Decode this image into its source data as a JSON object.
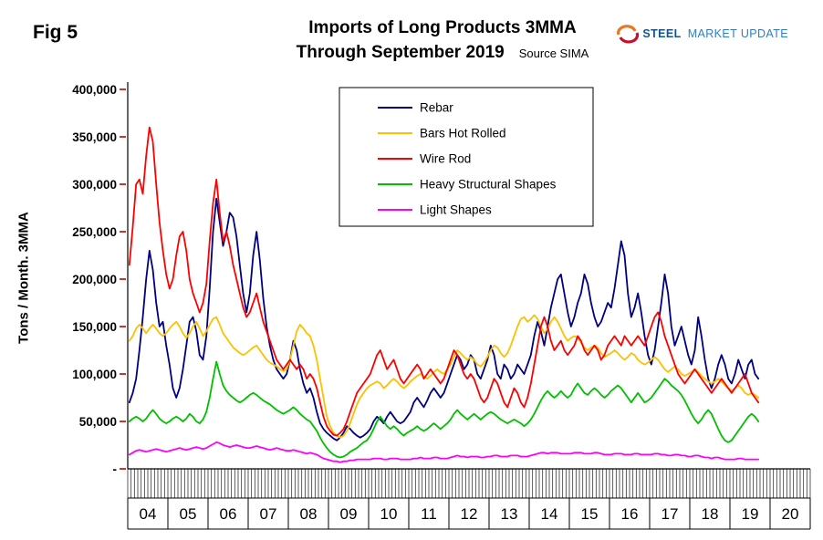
{
  "figure_label": "Fig 5",
  "header": {
    "title_line1": "Imports of Long Products 3MMA",
    "title_line2": "Through September 2019",
    "source": "Source SIMA"
  },
  "logo": {
    "steel": "STEEL",
    "market_update": "MARKET UPDATE"
  },
  "y_axis_title": "Tons / Month. 3MMA",
  "chart_data": {
    "type": "line",
    "title": "Imports of Long Products 3MMA Through September 2019",
    "subtitle": "Source SIMA",
    "xlabel": "",
    "ylabel": "Tons / Month. 3MMA",
    "ylim": [
      0,
      400000
    ],
    "grid": false,
    "legend_position": "top-center-inside",
    "y_ticks": [
      "400,000",
      "350,000",
      "300,000",
      "250,000",
      "200,000",
      "150,000",
      "100,000",
      "50,000",
      "-"
    ],
    "x_year_labels": [
      "04",
      "05",
      "06",
      "07",
      "08",
      "09",
      "10",
      "11",
      "12",
      "13",
      "14",
      "15",
      "16",
      "17",
      "18",
      "19",
      "20"
    ],
    "x_start": "2004-01",
    "x_end": "2019-09",
    "x_frequency": "monthly",
    "series": [
      {
        "name": "Rebar",
        "color": "#000080",
        "values": [
          70000,
          80000,
          95000,
          125000,
          160000,
          200000,
          230000,
          210000,
          175000,
          150000,
          155000,
          130000,
          110000,
          85000,
          75000,
          85000,
          105000,
          130000,
          155000,
          160000,
          145000,
          120000,
          115000,
          140000,
          190000,
          250000,
          285000,
          260000,
          235000,
          250000,
          270000,
          265000,
          245000,
          215000,
          185000,
          165000,
          185000,
          225000,
          250000,
          220000,
          180000,
          150000,
          130000,
          115000,
          105000,
          100000,
          95000,
          100000,
          115000,
          135000,
          125000,
          105000,
          90000,
          80000,
          85000,
          75000,
          60000,
          48000,
          42000,
          38000,
          35000,
          32000,
          30000,
          33000,
          38000,
          45000,
          42000,
          38000,
          35000,
          33000,
          35000,
          38000,
          42000,
          50000,
          55000,
          52000,
          48000,
          55000,
          60000,
          55000,
          50000,
          48000,
          50000,
          55000,
          60000,
          70000,
          75000,
          70000,
          65000,
          72000,
          80000,
          85000,
          80000,
          75000,
          80000,
          90000,
          100000,
          110000,
          120000,
          115000,
          105000,
          110000,
          120000,
          115000,
          100000,
          95000,
          105000,
          115000,
          130000,
          120000,
          100000,
          95000,
          110000,
          105000,
          95000,
          100000,
          110000,
          105000,
          100000,
          110000,
          120000,
          140000,
          155000,
          145000,
          130000,
          150000,
          170000,
          185000,
          200000,
          205000,
          185000,
          165000,
          150000,
          160000,
          175000,
          185000,
          205000,
          195000,
          175000,
          160000,
          150000,
          155000,
          165000,
          175000,
          170000,
          190000,
          215000,
          240000,
          225000,
          185000,
          160000,
          170000,
          185000,
          165000,
          140000,
          120000,
          110000,
          125000,
          150000,
          175000,
          205000,
          185000,
          150000,
          130000,
          140000,
          150000,
          135000,
          120000,
          110000,
          125000,
          160000,
          140000,
          115000,
          95000,
          85000,
          95000,
          110000,
          120000,
          110000,
          95000,
          90000,
          100000,
          115000,
          105000,
          95000,
          110000,
          115000,
          100000,
          95000
        ]
      },
      {
        "name": "Bars Hot Rolled",
        "color": "#FFC000",
        "values": [
          135000,
          140000,
          148000,
          152000,
          148000,
          143000,
          148000,
          152000,
          148000,
          143000,
          140000,
          143000,
          148000,
          152000,
          155000,
          150000,
          143000,
          138000,
          143000,
          150000,
          155000,
          148000,
          140000,
          145000,
          152000,
          158000,
          160000,
          152000,
          143000,
          138000,
          133000,
          128000,
          125000,
          122000,
          120000,
          122000,
          125000,
          128000,
          130000,
          125000,
          120000,
          115000,
          112000,
          110000,
          108000,
          105000,
          103000,
          105000,
          115000,
          130000,
          145000,
          152000,
          148000,
          143000,
          140000,
          130000,
          115000,
          95000,
          75000,
          55000,
          45000,
          38000,
          35000,
          33000,
          35000,
          40000,
          48000,
          58000,
          68000,
          75000,
          80000,
          85000,
          88000,
          90000,
          92000,
          90000,
          85000,
          88000,
          92000,
          95000,
          92000,
          88000,
          85000,
          88000,
          92000,
          95000,
          98000,
          100000,
          98000,
          95000,
          98000,
          102000,
          105000,
          102000,
          100000,
          105000,
          110000,
          118000,
          125000,
          122000,
          118000,
          115000,
          118000,
          115000,
          110000,
          108000,
          112000,
          118000,
          125000,
          130000,
          128000,
          122000,
          118000,
          122000,
          130000,
          140000,
          150000,
          158000,
          160000,
          155000,
          158000,
          162000,
          158000,
          150000,
          143000,
          148000,
          155000,
          160000,
          155000,
          148000,
          140000,
          135000,
          138000,
          140000,
          138000,
          133000,
          128000,
          125000,
          128000,
          130000,
          128000,
          122000,
          118000,
          120000,
          122000,
          125000,
          122000,
          118000,
          115000,
          118000,
          122000,
          120000,
          115000,
          112000,
          110000,
          112000,
          115000,
          118000,
          115000,
          110000,
          105000,
          102000,
          105000,
          108000,
          105000,
          100000,
          98000,
          100000,
          102000,
          105000,
          102000,
          98000,
          95000,
          92000,
          90000,
          92000,
          95000,
          92000,
          88000,
          85000,
          82000,
          85000,
          88000,
          85000,
          80000,
          78000,
          80000,
          78000,
          75000
        ]
      },
      {
        "name": "Wire Rod",
        "color": "#FF0000",
        "values": [
          215000,
          255000,
          300000,
          305000,
          290000,
          330000,
          360000,
          345000,
          300000,
          260000,
          230000,
          205000,
          190000,
          200000,
          225000,
          245000,
          250000,
          230000,
          200000,
          185000,
          175000,
          165000,
          175000,
          195000,
          240000,
          280000,
          305000,
          270000,
          240000,
          250000,
          235000,
          215000,
          200000,
          185000,
          170000,
          160000,
          165000,
          175000,
          185000,
          170000,
          155000,
          145000,
          135000,
          125000,
          115000,
          110000,
          105000,
          110000,
          115000,
          110000,
          105000,
          110000,
          105000,
          95000,
          100000,
          95000,
          85000,
          70000,
          55000,
          45000,
          40000,
          36000,
          35000,
          38000,
          42000,
          50000,
          60000,
          70000,
          80000,
          85000,
          90000,
          95000,
          100000,
          110000,
          120000,
          125000,
          115000,
          105000,
          110000,
          115000,
          105000,
          95000,
          90000,
          95000,
          100000,
          105000,
          110000,
          105000,
          95000,
          100000,
          105000,
          100000,
          95000,
          90000,
          95000,
          105000,
          115000,
          125000,
          120000,
          110000,
          100000,
          95000,
          100000,
          95000,
          85000,
          75000,
          70000,
          75000,
          85000,
          95000,
          90000,
          80000,
          70000,
          65000,
          75000,
          85000,
          80000,
          70000,
          65000,
          75000,
          90000,
          110000,
          130000,
          150000,
          160000,
          150000,
          135000,
          125000,
          130000,
          135000,
          125000,
          120000,
          125000,
          130000,
          140000,
          135000,
          125000,
          120000,
          125000,
          130000,
          125000,
          115000,
          120000,
          130000,
          135000,
          140000,
          135000,
          130000,
          140000,
          135000,
          130000,
          135000,
          140000,
          135000,
          130000,
          140000,
          150000,
          160000,
          165000,
          155000,
          140000,
          130000,
          120000,
          110000,
          100000,
          95000,
          90000,
          95000,
          100000,
          105000,
          100000,
          95000,
          90000,
          85000,
          80000,
          85000,
          90000,
          95000,
          90000,
          85000,
          80000,
          85000,
          90000,
          95000,
          100000,
          90000,
          80000,
          75000,
          70000
        ]
      },
      {
        "name": "Heavy Structural Shapes",
        "color": "#00C000",
        "values": [
          50000,
          53000,
          55000,
          53000,
          50000,
          53000,
          58000,
          62000,
          58000,
          53000,
          50000,
          48000,
          50000,
          53000,
          55000,
          53000,
          50000,
          53000,
          58000,
          55000,
          50000,
          48000,
          52000,
          60000,
          75000,
          95000,
          113000,
          100000,
          88000,
          82000,
          78000,
          75000,
          72000,
          70000,
          72000,
          75000,
          78000,
          80000,
          78000,
          75000,
          72000,
          70000,
          68000,
          65000,
          62000,
          60000,
          58000,
          60000,
          62000,
          65000,
          62000,
          58000,
          55000,
          52000,
          50000,
          45000,
          40000,
          33000,
          27000,
          22000,
          18000,
          15000,
          13000,
          12000,
          13000,
          15000,
          18000,
          20000,
          22000,
          25000,
          28000,
          30000,
          35000,
          42000,
          50000,
          55000,
          50000,
          45000,
          42000,
          45000,
          42000,
          38000,
          35000,
          38000,
          40000,
          42000,
          45000,
          42000,
          40000,
          42000,
          45000,
          48000,
          45000,
          42000,
          45000,
          48000,
          52000,
          58000,
          62000,
          58000,
          55000,
          52000,
          55000,
          58000,
          55000,
          52000,
          55000,
          58000,
          60000,
          58000,
          55000,
          52000,
          50000,
          48000,
          50000,
          52000,
          50000,
          48000,
          45000,
          48000,
          52000,
          58000,
          65000,
          72000,
          78000,
          82000,
          78000,
          75000,
          78000,
          82000,
          78000,
          75000,
          78000,
          85000,
          90000,
          85000,
          80000,
          78000,
          82000,
          85000,
          82000,
          78000,
          75000,
          78000,
          82000,
          85000,
          88000,
          85000,
          80000,
          75000,
          70000,
          75000,
          80000,
          75000,
          70000,
          72000,
          75000,
          80000,
          85000,
          90000,
          95000,
          92000,
          88000,
          85000,
          82000,
          78000,
          72000,
          65000,
          58000,
          52000,
          48000,
          52000,
          58000,
          62000,
          58000,
          50000,
          42000,
          35000,
          30000,
          28000,
          30000,
          35000,
          40000,
          45000,
          50000,
          55000,
          58000,
          55000,
          50000
        ]
      },
      {
        "name": "Light Shapes",
        "color": "#FF00FF",
        "values": [
          15000,
          17000,
          19000,
          20000,
          19000,
          18000,
          19000,
          20000,
          21000,
          20000,
          19000,
          18000,
          19000,
          20000,
          21000,
          22000,
          21000,
          20000,
          21000,
          22000,
          23000,
          22000,
          21000,
          22000,
          24000,
          26000,
          28000,
          27000,
          25000,
          24000,
          23000,
          24000,
          25000,
          24000,
          23000,
          22000,
          22000,
          23000,
          24000,
          23000,
          22000,
          21000,
          20000,
          21000,
          22000,
          21000,
          20000,
          19000,
          19000,
          20000,
          19000,
          18000,
          17000,
          16000,
          17000,
          16000,
          15000,
          13000,
          11000,
          10000,
          9000,
          8000,
          8000,
          7000,
          8000,
          8000,
          9000,
          9000,
          10000,
          10000,
          10000,
          10000,
          10000,
          11000,
          11000,
          11000,
          10000,
          10000,
          11000,
          11000,
          11000,
          10000,
          10000,
          10000,
          10000,
          11000,
          11000,
          12000,
          11000,
          11000,
          11000,
          12000,
          12000,
          11000,
          11000,
          11000,
          12000,
          13000,
          14000,
          13000,
          13000,
          12000,
          13000,
          13000,
          13000,
          12000,
          12000,
          13000,
          13000,
          14000,
          14000,
          13000,
          13000,
          13000,
          14000,
          14000,
          14000,
          13000,
          13000,
          13000,
          14000,
          15000,
          16000,
          17000,
          17000,
          16000,
          17000,
          17000,
          17000,
          16000,
          16000,
          16000,
          16000,
          17000,
          17000,
          17000,
          16000,
          16000,
          16000,
          17000,
          17000,
          16000,
          15000,
          15000,
          15000,
          16000,
          16000,
          16000,
          15000,
          15000,
          15000,
          16000,
          16000,
          15000,
          15000,
          15000,
          15000,
          16000,
          16000,
          15000,
          15000,
          14000,
          14000,
          15000,
          15000,
          14000,
          14000,
          13000,
          13000,
          14000,
          14000,
          13000,
          12000,
          12000,
          11000,
          12000,
          12000,
          11000,
          10000,
          10000,
          10000,
          10000,
          11000,
          11000,
          10000,
          10000,
          10000,
          10000,
          10000
        ]
      }
    ]
  }
}
